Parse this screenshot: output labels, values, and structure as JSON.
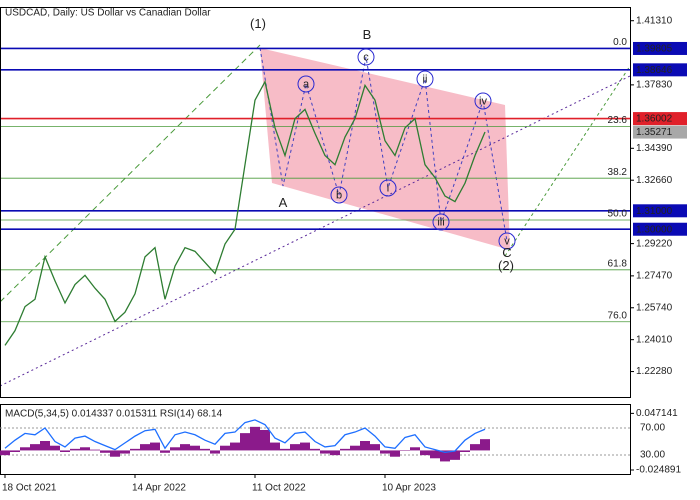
{
  "chart_data": [
    {
      "type": "line",
      "title": "USDCAD, Daily:  US Dollar vs Canadian Dollar",
      "color": "#2e7d32",
      "categories": [
        "18 Oct 2021",
        null,
        null,
        null,
        null,
        null,
        null,
        null,
        null,
        null,
        null,
        null,
        null,
        "14 Apr 2022",
        null,
        null,
        null,
        null,
        null,
        null,
        null,
        null,
        null,
        null,
        null,
        "11 Oct 2022",
        null,
        null,
        null,
        null,
        null,
        null,
        null,
        null,
        null,
        null,
        null,
        null,
        "10 Apr 2023",
        null,
        null,
        null,
        null,
        null,
        null,
        null,
        null,
        null,
        null
      ],
      "values": [
        1.237,
        1.245,
        1.258,
        1.262,
        1.285,
        1.272,
        1.26,
        1.27,
        1.275,
        1.268,
        1.262,
        1.25,
        1.255,
        1.265,
        1.285,
        1.29,
        1.262,
        1.28,
        1.29,
        1.288,
        1.282,
        1.276,
        1.292,
        1.3,
        1.335,
        1.37,
        1.38,
        1.355,
        1.34,
        1.36,
        1.365,
        1.352,
        1.34,
        1.335,
        1.35,
        1.36,
        1.378,
        1.37,
        1.348,
        1.34,
        1.355,
        1.36,
        1.335,
        1.328,
        1.318,
        1.315,
        1.325,
        1.34,
        1.35271
      ],
      "ylim": [
        1.209,
        1.42
      ],
      "yticks": [
        {
          "value": 1.4131,
          "label": "1.41310"
        },
        {
          "value": 1.3783,
          "label": "1.37830"
        },
        {
          "value": 1.3439,
          "label": "1.34390"
        },
        {
          "value": 1.3266,
          "label": "1.32660"
        },
        {
          "value": 1.2922,
          "label": "1.29220"
        },
        {
          "value": 1.2747,
          "label": "1.27470"
        },
        {
          "value": 1.2574,
          "label": "1.25740"
        },
        {
          "value": 1.2401,
          "label": "1.24010"
        },
        {
          "value": 1.2228,
          "label": "1.22280"
        }
      ],
      "levels": [
        {
          "value": 1.39805,
          "color": "#0a0ab4"
        },
        {
          "value": 1.38646,
          "color": "#0a0ab4"
        },
        {
          "value": 1.36002,
          "color": "#e0202a"
        },
        {
          "value": 1.35271,
          "color": "#a8a8a8"
        },
        {
          "value": 1.31,
          "label": "1.31000",
          "color": "#0a0ab4"
        },
        {
          "value": 1.3,
          "label": "1.30000",
          "color": "#0a0ab4"
        }
      ],
      "fib_color": "#4a9a3a",
      "fib_levels": [
        {
          "label": "0.0",
          "value": 1.398
        },
        {
          "label": "23.6",
          "value": 1.3558
        },
        {
          "label": "38.2",
          "value": 1.3277
        },
        {
          "label": "50.0",
          "value": 1.305
        },
        {
          "label": "61.8",
          "value": 1.278
        },
        {
          "label": "76.0",
          "value": 1.2498
        }
      ],
      "annotations": [
        {
          "text": "(1)",
          "color": "#4a9a3a"
        },
        {
          "text": "B",
          "color": "#a83232"
        },
        {
          "text": "c",
          "color": "#2a2ad0",
          "circled": true
        },
        {
          "text": "a",
          "color": "#2a2ad0",
          "circled": true
        },
        {
          "text": "ii",
          "color": "#2a2ad0",
          "circled": true
        },
        {
          "text": "iv",
          "color": "#2a2ad0",
          "circled": true
        },
        {
          "text": "A",
          "color": "#a83232"
        },
        {
          "text": "b",
          "color": "#2a2ad0",
          "circled": true
        },
        {
          "text": "i",
          "color": "#2a2ad0",
          "circled": true
        },
        {
          "text": "iii",
          "color": "#2a2ad0",
          "circled": true
        },
        {
          "text": "v",
          "color": "#2a2ad0",
          "circled": true
        },
        {
          "text": "C",
          "color": "#e07080"
        },
        {
          "text": "(2)",
          "color": "#4a9a3a"
        }
      ]
    },
    {
      "type": "combo",
      "title": "MACD(5,34,5) 0.014337 0.015311 RSI(14) 68.14",
      "ylim": [
        -0.03,
        0.0578
      ],
      "yticks": [
        0.047141,
        -0.024891
      ],
      "y2lim": [
        2,
        104
      ],
      "y2ticks": [
        {
          "value": 70,
          "label": "70.00"
        },
        {
          "value": 30,
          "label": "30.00"
        }
      ],
      "series": [
        {
          "type": "bar",
          "color": "#8b1a8b",
          "values": [
            -0.006,
            -0.002,
            0.004,
            0.008,
            0.012,
            0.006,
            -0.002,
            0.002,
            0.004,
            0.001,
            -0.003,
            -0.008,
            -0.004,
            0.002,
            0.008,
            0.01,
            -0.003,
            0.004,
            0.008,
            0.006,
            0.002,
            -0.004,
            0.006,
            0.01,
            0.022,
            0.03,
            0.026,
            0.01,
            0.002,
            0.008,
            0.01,
            0.002,
            -0.004,
            -0.006,
            0.002,
            0.006,
            0.012,
            0.008,
            -0.004,
            -0.008,
            0.0,
            0.004,
            -0.006,
            -0.01,
            -0.014,
            -0.012,
            -0.002,
            0.008,
            0.014337
          ]
        },
        {
          "type": "line",
          "axis": "y2",
          "color": "#1e6fff",
          "values": [
            40,
            52,
            62,
            60,
            70,
            50,
            42,
            55,
            58,
            50,
            44,
            38,
            48,
            58,
            66,
            68,
            40,
            60,
            64,
            60,
            52,
            46,
            62,
            64,
            78,
            82,
            75,
            55,
            48,
            62,
            64,
            50,
            42,
            44,
            60,
            64,
            70,
            58,
            42,
            40,
            56,
            60,
            42,
            38,
            34,
            36,
            52,
            62,
            68.14
          ]
        }
      ]
    }
  ]
}
